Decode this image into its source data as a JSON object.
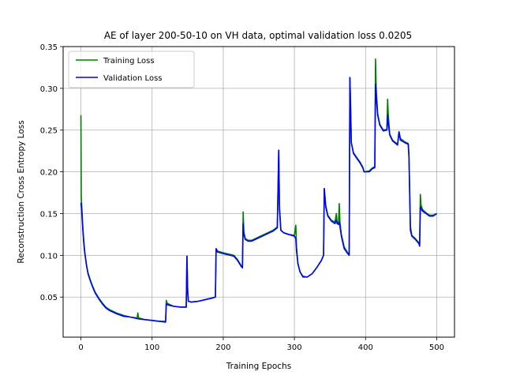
{
  "chart_data": {
    "type": "line",
    "title": "AE of layer 200-50-10 on VH data, optimal validation loss 0.0205",
    "xlabel": "Training Epochs",
    "ylabel": "Reconstruction Cross Entropy Loss",
    "xlim": [
      -25,
      525
    ],
    "ylim": [
      0.002,
      0.35
    ],
    "xticks": [
      0,
      100,
      200,
      300,
      400,
      500
    ],
    "yticks": [
      0.05,
      0.1,
      0.15,
      0.2,
      0.25,
      0.3,
      0.35
    ],
    "xtick_labels": [
      "0",
      "100",
      "200",
      "300",
      "400",
      "500"
    ],
    "ytick_labels": [
      "0.05",
      "0.10",
      "0.15",
      "0.20",
      "0.25",
      "0.30",
      "0.35"
    ],
    "grid": true,
    "legend_position": "upper-left",
    "series": [
      {
        "name": "Training Loss",
        "color": "#008000",
        "points": [
          [
            0,
            0.268
          ],
          [
            0.5,
            0.17
          ],
          [
            1,
            0.162
          ],
          [
            2,
            0.145
          ],
          [
            3,
            0.13
          ],
          [
            4,
            0.118
          ],
          [
            5,
            0.108
          ],
          [
            6,
            0.1
          ],
          [
            8,
            0.088
          ],
          [
            10,
            0.079
          ],
          [
            13,
            0.071
          ],
          [
            16,
            0.064
          ],
          [
            20,
            0.056
          ],
          [
            25,
            0.049
          ],
          [
            30,
            0.043
          ],
          [
            35,
            0.038
          ],
          [
            40,
            0.035
          ],
          [
            50,
            0.031
          ],
          [
            60,
            0.028
          ],
          [
            70,
            0.026
          ],
          [
            79,
            0.025
          ],
          [
            80,
            0.031
          ],
          [
            81,
            0.025
          ],
          [
            90,
            0.023
          ],
          [
            100,
            0.022
          ],
          [
            110,
            0.021
          ],
          [
            119,
            0.021
          ],
          [
            120,
            0.046
          ],
          [
            121,
            0.043
          ],
          [
            125,
            0.041
          ],
          [
            130,
            0.039
          ],
          [
            140,
            0.038
          ],
          [
            148,
            0.038
          ],
          [
            149,
            0.099
          ],
          [
            150,
            0.06
          ],
          [
            151,
            0.045
          ],
          [
            155,
            0.044
          ],
          [
            165,
            0.045
          ],
          [
            175,
            0.047
          ],
          [
            185,
            0.049
          ],
          [
            189,
            0.05
          ],
          [
            190,
            0.108
          ],
          [
            192,
            0.105
          ],
          [
            200,
            0.103
          ],
          [
            210,
            0.101
          ],
          [
            215,
            0.1
          ],
          [
            220,
            0.095
          ],
          [
            225,
            0.088
          ],
          [
            227,
            0.086
          ],
          [
            228,
            0.152
          ],
          [
            229,
            0.128
          ],
          [
            231,
            0.12
          ],
          [
            235,
            0.118
          ],
          [
            240,
            0.118
          ],
          [
            250,
            0.122
          ],
          [
            260,
            0.126
          ],
          [
            270,
            0.13
          ],
          [
            276,
            0.134
          ],
          [
            278,
            0.226
          ],
          [
            279,
            0.16
          ],
          [
            281,
            0.13
          ],
          [
            285,
            0.127
          ],
          [
            292,
            0.125
          ],
          [
            300,
            0.124
          ],
          [
            302,
            0.136
          ],
          [
            303,
            0.11
          ],
          [
            305,
            0.09
          ],
          [
            308,
            0.08
          ],
          [
            312,
            0.075
          ],
          [
            318,
            0.074
          ],
          [
            325,
            0.078
          ],
          [
            332,
            0.086
          ],
          [
            338,
            0.094
          ],
          [
            341,
            0.1
          ],
          [
            342,
            0.18
          ],
          [
            344,
            0.16
          ],
          [
            347,
            0.148
          ],
          [
            352,
            0.142
          ],
          [
            357,
            0.14
          ],
          [
            359,
            0.15
          ],
          [
            360,
            0.14
          ],
          [
            362,
            0.138
          ],
          [
            363,
            0.162
          ],
          [
            364,
            0.14
          ],
          [
            366,
            0.125
          ],
          [
            370,
            0.11
          ],
          [
            375,
            0.103
          ],
          [
            377,
            0.101
          ],
          [
            378,
            0.313
          ],
          [
            379,
            0.28
          ],
          [
            380,
            0.235
          ],
          [
            383,
            0.223
          ],
          [
            387,
            0.218
          ],
          [
            392,
            0.212
          ],
          [
            396,
            0.206
          ],
          [
            398,
            0.2
          ],
          [
            405,
            0.201
          ],
          [
            410,
            0.205
          ],
          [
            413,
            0.206
          ],
          [
            414,
            0.335
          ],
          [
            415,
            0.3
          ],
          [
            417,
            0.27
          ],
          [
            420,
            0.257
          ],
          [
            425,
            0.25
          ],
          [
            430,
            0.251
          ],
          [
            431,
            0.287
          ],
          [
            432,
            0.268
          ],
          [
            434,
            0.245
          ],
          [
            438,
            0.238
          ],
          [
            445,
            0.233
          ],
          [
            447,
            0.248
          ],
          [
            449,
            0.24
          ],
          [
            455,
            0.236
          ],
          [
            460,
            0.234
          ],
          [
            461,
            0.22
          ],
          [
            462,
            0.18
          ],
          [
            463,
            0.135
          ],
          [
            465,
            0.124
          ],
          [
            470,
            0.12
          ],
          [
            475,
            0.115
          ],
          [
            476,
            0.112
          ],
          [
            477,
            0.173
          ],
          [
            478,
            0.16
          ],
          [
            480,
            0.155
          ],
          [
            485,
            0.151
          ],
          [
            490,
            0.148
          ],
          [
            495,
            0.148
          ],
          [
            500,
            0.15
          ]
        ]
      },
      {
        "name": "Validation Loss",
        "color": "#0000ff",
        "points": [
          [
            0,
            0.163
          ],
          [
            1,
            0.155
          ],
          [
            2,
            0.14
          ],
          [
            3,
            0.127
          ],
          [
            4,
            0.115
          ],
          [
            5,
            0.106
          ],
          [
            6,
            0.099
          ],
          [
            8,
            0.087
          ],
          [
            10,
            0.078
          ],
          [
            13,
            0.07
          ],
          [
            16,
            0.063
          ],
          [
            20,
            0.055
          ],
          [
            25,
            0.048
          ],
          [
            30,
            0.042
          ],
          [
            35,
            0.037
          ],
          [
            40,
            0.034
          ],
          [
            50,
            0.03
          ],
          [
            60,
            0.027
          ],
          [
            70,
            0.026
          ],
          [
            80,
            0.024
          ],
          [
            90,
            0.023
          ],
          [
            100,
            0.022
          ],
          [
            110,
            0.021
          ],
          [
            119,
            0.02
          ],
          [
            120,
            0.042
          ],
          [
            121,
            0.041
          ],
          [
            125,
            0.04
          ],
          [
            130,
            0.039
          ],
          [
            140,
            0.038
          ],
          [
            148,
            0.038
          ],
          [
            149,
            0.099
          ],
          [
            150,
            0.055
          ],
          [
            151,
            0.045
          ],
          [
            155,
            0.044
          ],
          [
            165,
            0.045
          ],
          [
            175,
            0.047
          ],
          [
            185,
            0.049
          ],
          [
            189,
            0.05
          ],
          [
            190,
            0.108
          ],
          [
            192,
            0.104
          ],
          [
            200,
            0.102
          ],
          [
            210,
            0.1
          ],
          [
            215,
            0.099
          ],
          [
            220,
            0.094
          ],
          [
            225,
            0.087
          ],
          [
            227,
            0.085
          ],
          [
            228,
            0.138
          ],
          [
            229,
            0.125
          ],
          [
            231,
            0.119
          ],
          [
            235,
            0.117
          ],
          [
            240,
            0.117
          ],
          [
            250,
            0.121
          ],
          [
            260,
            0.125
          ],
          [
            270,
            0.129
          ],
          [
            276,
            0.133
          ],
          [
            278,
            0.226
          ],
          [
            279,
            0.155
          ],
          [
            281,
            0.13
          ],
          [
            285,
            0.127
          ],
          [
            292,
            0.125
          ],
          [
            300,
            0.123
          ],
          [
            302,
            0.12
          ],
          [
            303,
            0.105
          ],
          [
            305,
            0.09
          ],
          [
            308,
            0.08
          ],
          [
            312,
            0.074
          ],
          [
            318,
            0.074
          ],
          [
            325,
            0.078
          ],
          [
            332,
            0.086
          ],
          [
            338,
            0.094
          ],
          [
            341,
            0.1
          ],
          [
            342,
            0.18
          ],
          [
            344,
            0.158
          ],
          [
            347,
            0.147
          ],
          [
            352,
            0.141
          ],
          [
            357,
            0.138
          ],
          [
            359,
            0.142
          ],
          [
            360,
            0.138
          ],
          [
            362,
            0.137
          ],
          [
            363,
            0.14
          ],
          [
            364,
            0.135
          ],
          [
            366,
            0.123
          ],
          [
            370,
            0.108
          ],
          [
            375,
            0.102
          ],
          [
            377,
            0.1
          ],
          [
            378,
            0.313
          ],
          [
            379,
            0.275
          ],
          [
            380,
            0.235
          ],
          [
            383,
            0.222
          ],
          [
            387,
            0.217
          ],
          [
            392,
            0.211
          ],
          [
            396,
            0.205
          ],
          [
            398,
            0.2
          ],
          [
            405,
            0.2
          ],
          [
            410,
            0.204
          ],
          [
            413,
            0.205
          ],
          [
            414,
            0.305
          ],
          [
            415,
            0.29
          ],
          [
            417,
            0.268
          ],
          [
            420,
            0.256
          ],
          [
            425,
            0.249
          ],
          [
            430,
            0.25
          ],
          [
            431,
            0.268
          ],
          [
            432,
            0.258
          ],
          [
            434,
            0.244
          ],
          [
            438,
            0.237
          ],
          [
            445,
            0.232
          ],
          [
            447,
            0.248
          ],
          [
            449,
            0.238
          ],
          [
            455,
            0.235
          ],
          [
            460,
            0.233
          ],
          [
            461,
            0.218
          ],
          [
            462,
            0.175
          ],
          [
            463,
            0.13
          ],
          [
            465,
            0.123
          ],
          [
            470,
            0.119
          ],
          [
            475,
            0.114
          ],
          [
            476,
            0.111
          ],
          [
            477,
            0.158
          ],
          [
            478,
            0.156
          ],
          [
            480,
            0.153
          ],
          [
            485,
            0.15
          ],
          [
            490,
            0.147
          ],
          [
            495,
            0.147
          ],
          [
            500,
            0.15
          ]
        ]
      }
    ]
  }
}
